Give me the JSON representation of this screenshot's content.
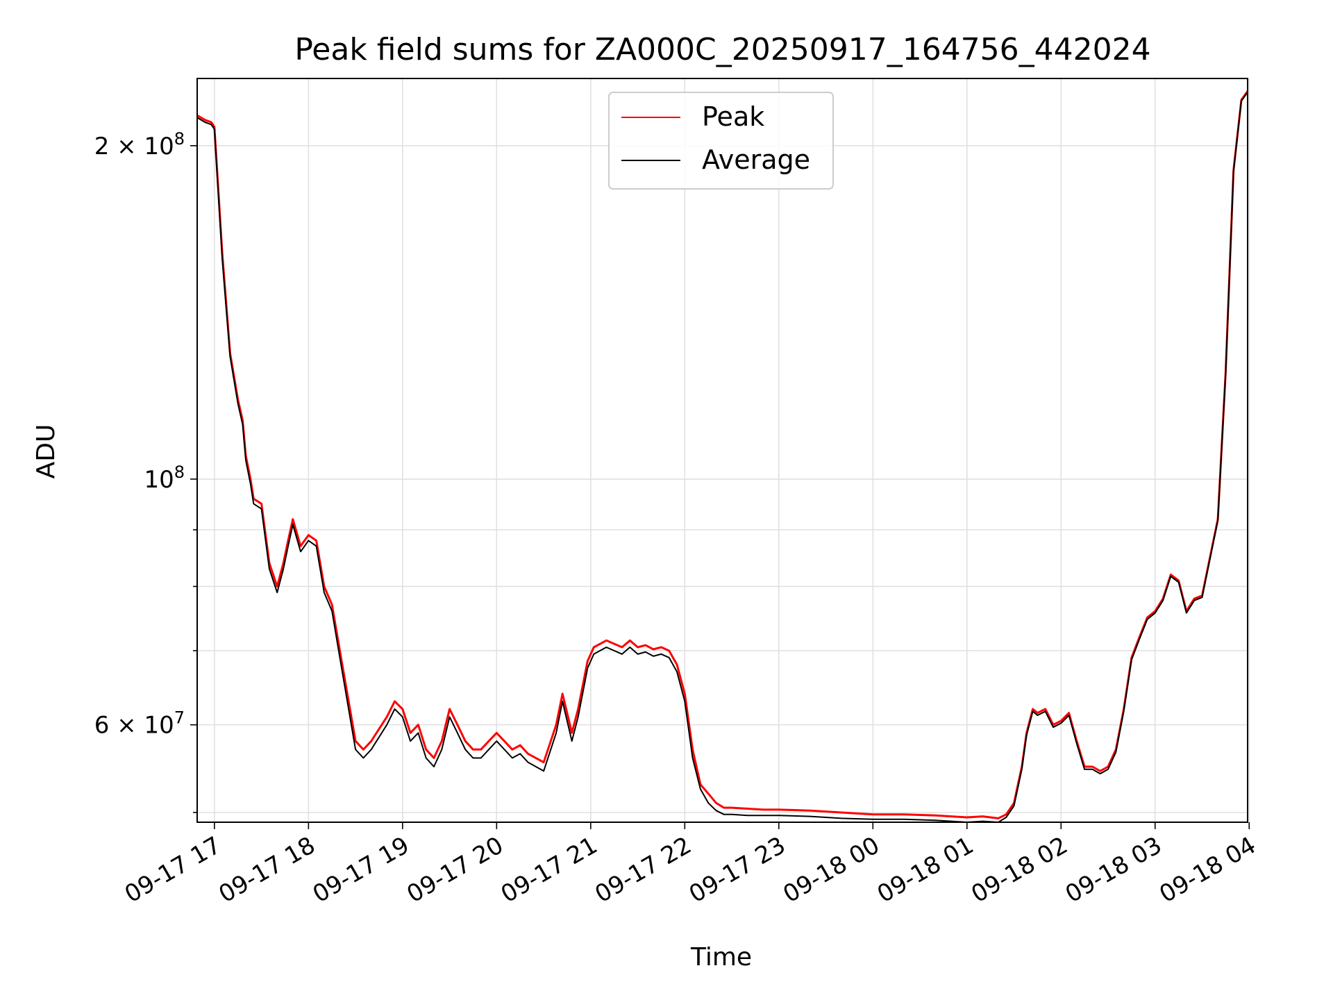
{
  "chart_data": {
    "type": "line",
    "title": "Peak field sums for ZA000C_20250917_164756_442024",
    "xlabel": "Time",
    "ylabel": "ADU",
    "yscale": "log",
    "xlim": [
      "2025-09-17 16:49",
      "2025-09-18 03:59"
    ],
    "ylim": [
      49000000,
      230000000
    ],
    "grid": true,
    "legend": {
      "location": "upper center"
    },
    "x_ticks": [
      "09-17 17",
      "09-17 18",
      "09-17 19",
      "09-17 20",
      "09-17 21",
      "09-17 22",
      "09-17 23",
      "09-18 00",
      "09-18 01",
      "09-18 02",
      "09-18 03",
      "09-18 04"
    ],
    "y_ticks": [
      {
        "value": 200000000,
        "base": "2 × 10",
        "exp": "8"
      },
      {
        "value": 100000000,
        "base": "10",
        "exp": "8"
      },
      {
        "value": 60000000,
        "base": "6 × 10",
        "exp": "7"
      }
    ],
    "y_minor_ticks": [
      50000000,
      70000000,
      80000000,
      90000000
    ],
    "series": [
      {
        "name": "Peak",
        "color": "#ff0000",
        "x": [
          "2025-09-17 16:49",
          "2025-09-17 16:54",
          "2025-09-17 16:58",
          "2025-09-17 17:00",
          "2025-09-17 17:05",
          "2025-09-17 17:10",
          "2025-09-17 17:15",
          "2025-09-17 17:18",
          "2025-09-17 17:20",
          "2025-09-17 17:23",
          "2025-09-17 17:25",
          "2025-09-17 17:30",
          "2025-09-17 17:35",
          "2025-09-17 17:40",
          "2025-09-17 17:44",
          "2025-09-17 17:47",
          "2025-09-17 17:50",
          "2025-09-17 17:55",
          "2025-09-17 18:00",
          "2025-09-17 18:05",
          "2025-09-17 18:10",
          "2025-09-17 18:15",
          "2025-09-17 18:20",
          "2025-09-17 18:30",
          "2025-09-17 18:35",
          "2025-09-17 18:40",
          "2025-09-17 18:50",
          "2025-09-17 18:55",
          "2025-09-17 19:00",
          "2025-09-17 19:05",
          "2025-09-17 19:10",
          "2025-09-17 19:15",
          "2025-09-17 19:20",
          "2025-09-17 19:25",
          "2025-09-17 19:30",
          "2025-09-17 19:35",
          "2025-09-17 19:40",
          "2025-09-17 19:45",
          "2025-09-17 19:50",
          "2025-09-17 19:55",
          "2025-09-17 20:00",
          "2025-09-17 20:10",
          "2025-09-17 20:15",
          "2025-09-17 20:20",
          "2025-09-17 20:30",
          "2025-09-17 20:38",
          "2025-09-17 20:42",
          "2025-09-17 20:48",
          "2025-09-17 20:52",
          "2025-09-17 20:58",
          "2025-09-17 21:02",
          "2025-09-17 21:10",
          "2025-09-17 21:15",
          "2025-09-17 21:20",
          "2025-09-17 21:25",
          "2025-09-17 21:30",
          "2025-09-17 21:35",
          "2025-09-17 21:40",
          "2025-09-17 21:45",
          "2025-09-17 21:50",
          "2025-09-17 21:55",
          "2025-09-17 22:00",
          "2025-09-17 22:05",
          "2025-09-17 22:10",
          "2025-09-17 22:15",
          "2025-09-17 22:20",
          "2025-09-17 22:25",
          "2025-09-17 22:30",
          "2025-09-17 22:40",
          "2025-09-17 22:50",
          "2025-09-17 23:00",
          "2025-09-17 23:20",
          "2025-09-17 23:40",
          "2025-09-18 00:00",
          "2025-09-18 00:20",
          "2025-09-18 00:40",
          "2025-09-18 00:50",
          "2025-09-18 01:00",
          "2025-09-18 01:10",
          "2025-09-18 01:20",
          "2025-09-18 01:25",
          "2025-09-18 01:30",
          "2025-09-18 01:35",
          "2025-09-18 01:38",
          "2025-09-18 01:42",
          "2025-09-18 01:45",
          "2025-09-18 01:50",
          "2025-09-18 01:55",
          "2025-09-18 02:00",
          "2025-09-18 02:05",
          "2025-09-18 02:10",
          "2025-09-18 02:15",
          "2025-09-18 02:20",
          "2025-09-18 02:25",
          "2025-09-18 02:30",
          "2025-09-18 02:35",
          "2025-09-18 02:40",
          "2025-09-18 02:45",
          "2025-09-18 02:50",
          "2025-09-18 02:55",
          "2025-09-18 03:00",
          "2025-09-18 03:05",
          "2025-09-18 03:10",
          "2025-09-18 03:15",
          "2025-09-18 03:20",
          "2025-09-18 03:25",
          "2025-09-18 03:30",
          "2025-09-18 03:35",
          "2025-09-18 03:40",
          "2025-09-18 03:45",
          "2025-09-18 03:50",
          "2025-09-18 03:55",
          "2025-09-18 03:59"
        ],
        "y": [
          213000000,
          211000000,
          210000000,
          208000000,
          160000000,
          130000000,
          118000000,
          113000000,
          105000000,
          100000000,
          96000000,
          95000000,
          84000000,
          80000000,
          84000000,
          88000000,
          92000000,
          87000000,
          89000000,
          88000000,
          80000000,
          77000000,
          70000000,
          58000000,
          57000000,
          58000000,
          61000000,
          63000000,
          62000000,
          59000000,
          60000000,
          57000000,
          56000000,
          58000000,
          62000000,
          60000000,
          58000000,
          57000000,
          57000000,
          58000000,
          59000000,
          57000000,
          57500000,
          56500000,
          55500000,
          60000000,
          64000000,
          59000000,
          62000000,
          68500000,
          70500000,
          71500000,
          71000000,
          70500000,
          71500000,
          70500000,
          70800000,
          70200000,
          70500000,
          70000000,
          68000000,
          64000000,
          57000000,
          53000000,
          52000000,
          51000000,
          50500000,
          50500000,
          50400000,
          50300000,
          50300000,
          50200000,
          50000000,
          49800000,
          49800000,
          49700000,
          49600000,
          49500000,
          49600000,
          49400000,
          49800000,
          51000000,
          55000000,
          59000000,
          62000000,
          61500000,
          62000000,
          60000000,
          60500000,
          61500000,
          58000000,
          55000000,
          55000000,
          54500000,
          55000000,
          57000000,
          62000000,
          69000000,
          72000000,
          75000000,
          76000000,
          78000000,
          82000000,
          81000000,
          76000000,
          78000000,
          78500000,
          85000000,
          92000000,
          125000000,
          190000000,
          220000000,
          224000000
        ]
      },
      {
        "name": "Average",
        "color": "#000000",
        "x": [
          "2025-09-17 16:49",
          "2025-09-17 16:54",
          "2025-09-17 16:58",
          "2025-09-17 17:00",
          "2025-09-17 17:05",
          "2025-09-17 17:10",
          "2025-09-17 17:15",
          "2025-09-17 17:18",
          "2025-09-17 17:20",
          "2025-09-17 17:23",
          "2025-09-17 17:25",
          "2025-09-17 17:30",
          "2025-09-17 17:35",
          "2025-09-17 17:40",
          "2025-09-17 17:44",
          "2025-09-17 17:47",
          "2025-09-17 17:50",
          "2025-09-17 17:55",
          "2025-09-17 18:00",
          "2025-09-17 18:05",
          "2025-09-17 18:10",
          "2025-09-17 18:15",
          "2025-09-17 18:20",
          "2025-09-17 18:30",
          "2025-09-17 18:35",
          "2025-09-17 18:40",
          "2025-09-17 18:50",
          "2025-09-17 18:55",
          "2025-09-17 19:00",
          "2025-09-17 19:05",
          "2025-09-17 19:10",
          "2025-09-17 19:15",
          "2025-09-17 19:20",
          "2025-09-17 19:25",
          "2025-09-17 19:30",
          "2025-09-17 19:35",
          "2025-09-17 19:40",
          "2025-09-17 19:45",
          "2025-09-17 19:50",
          "2025-09-17 19:55",
          "2025-09-17 20:00",
          "2025-09-17 20:10",
          "2025-09-17 20:15",
          "2025-09-17 20:20",
          "2025-09-17 20:30",
          "2025-09-17 20:38",
          "2025-09-17 20:42",
          "2025-09-17 20:48",
          "2025-09-17 20:52",
          "2025-09-17 20:58",
          "2025-09-17 21:02",
          "2025-09-17 21:10",
          "2025-09-17 21:15",
          "2025-09-17 21:20",
          "2025-09-17 21:25",
          "2025-09-17 21:30",
          "2025-09-17 21:35",
          "2025-09-17 21:40",
          "2025-09-17 21:45",
          "2025-09-17 21:50",
          "2025-09-17 21:55",
          "2025-09-17 22:00",
          "2025-09-17 22:05",
          "2025-09-17 22:10",
          "2025-09-17 22:15",
          "2025-09-17 22:20",
          "2025-09-17 22:25",
          "2025-09-17 22:30",
          "2025-09-17 22:40",
          "2025-09-17 22:50",
          "2025-09-17 23:00",
          "2025-09-17 23:20",
          "2025-09-17 23:40",
          "2025-09-18 00:00",
          "2025-09-18 00:20",
          "2025-09-18 00:40",
          "2025-09-18 00:50",
          "2025-09-18 01:00",
          "2025-09-18 01:10",
          "2025-09-18 01:20",
          "2025-09-18 01:25",
          "2025-09-18 01:30",
          "2025-09-18 01:35",
          "2025-09-18 01:38",
          "2025-09-18 01:42",
          "2025-09-18 01:45",
          "2025-09-18 01:50",
          "2025-09-18 01:55",
          "2025-09-18 02:00",
          "2025-09-18 02:05",
          "2025-09-18 02:10",
          "2025-09-18 02:15",
          "2025-09-18 02:20",
          "2025-09-18 02:25",
          "2025-09-18 02:30",
          "2025-09-18 02:35",
          "2025-09-18 02:40",
          "2025-09-18 02:45",
          "2025-09-18 02:50",
          "2025-09-18 02:55",
          "2025-09-18 03:00",
          "2025-09-18 03:05",
          "2025-09-18 03:10",
          "2025-09-18 03:15",
          "2025-09-18 03:20",
          "2025-09-18 03:25",
          "2025-09-18 03:30",
          "2025-09-18 03:35",
          "2025-09-18 03:40",
          "2025-09-18 03:45",
          "2025-09-18 03:50",
          "2025-09-18 03:55",
          "2025-09-18 03:59"
        ],
        "y": [
          212000000,
          210000000,
          209000000,
          207000000,
          158000000,
          129000000,
          117000000,
          112000000,
          104000000,
          99000000,
          95000000,
          94000000,
          83000000,
          79000000,
          83000000,
          87000000,
          91000000,
          86000000,
          88000000,
          87000000,
          79000000,
          76000000,
          69000000,
          57000000,
          56000000,
          57000000,
          60000000,
          62000000,
          61000000,
          58000000,
          59000000,
          56000000,
          55000000,
          57000000,
          61000000,
          59000000,
          57000000,
          56000000,
          56000000,
          57000000,
          58000000,
          56000000,
          56500000,
          55500000,
          54500000,
          59000000,
          63000000,
          58000000,
          61000000,
          67500000,
          69500000,
          70500000,
          70000000,
          69500000,
          70500000,
          69500000,
          69800000,
          69200000,
          69500000,
          69000000,
          67000000,
          63000000,
          56000000,
          52500000,
          51000000,
          50200000,
          49800000,
          49800000,
          49700000,
          49700000,
          49700000,
          49600000,
          49400000,
          49300000,
          49300000,
          49200000,
          49100000,
          49000000,
          49100000,
          49000000,
          49500000,
          50700000,
          54700000,
          58700000,
          61700000,
          61200000,
          61700000,
          59700000,
          60200000,
          61200000,
          57700000,
          54700000,
          54700000,
          54200000,
          54700000,
          56700000,
          61700000,
          68700000,
          71700000,
          74700000,
          75700000,
          77700000,
          81700000,
          80700000,
          75700000,
          77700000,
          78200000,
          84700000,
          91700000,
          124500000,
          189500000,
          219500000,
          223500000
        ]
      }
    ]
  }
}
